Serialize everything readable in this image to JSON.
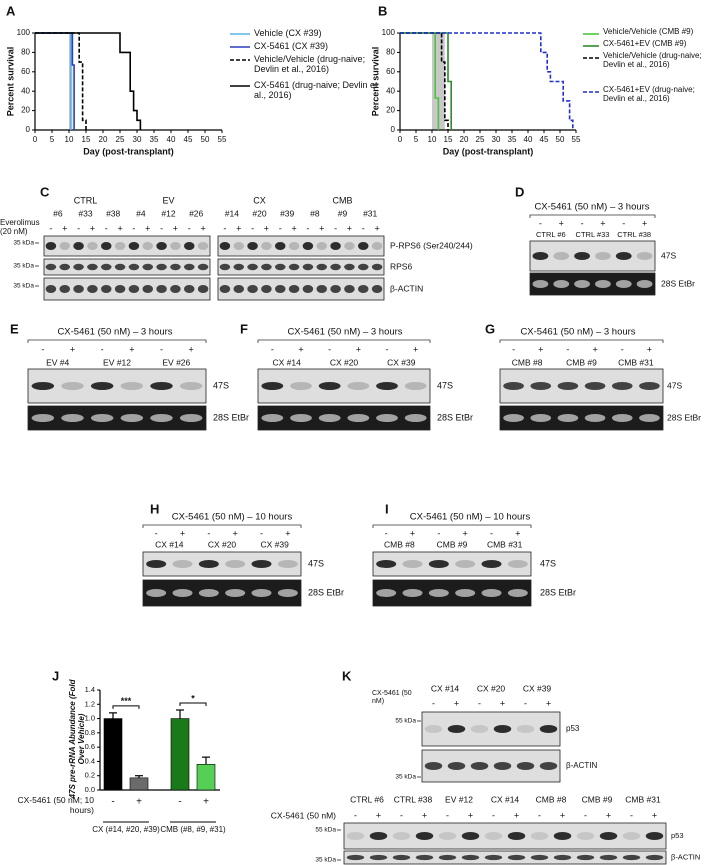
{
  "chart_data": [
    {
      "type": "line",
      "panel": "A",
      "ylabel": "Percent survival",
      "xlabel": "Day (post-transplant)",
      "xlim": [
        0,
        55
      ],
      "xticks": [
        0,
        5,
        10,
        15,
        20,
        25,
        30,
        35,
        40,
        45,
        50,
        55
      ],
      "ylim": [
        0,
        100
      ],
      "yticks": [
        0,
        20,
        40,
        60,
        80,
        100
      ],
      "shade": [
        10,
        11
      ],
      "series": [
        {
          "name": "Vehicle (CX #39)",
          "color": "#5bb4e5",
          "dash": false,
          "x": [
            0,
            10.5,
            10.5
          ],
          "values": [
            100,
            100,
            0
          ]
        },
        {
          "name": "CX-5461 (CX #39)",
          "color": "#2a3fbf",
          "dash": false,
          "x": [
            0,
            11,
            11,
            11.5,
            11.5
          ],
          "values": [
            100,
            100,
            67,
            67,
            0
          ]
        },
        {
          "name": "Vehicle/Vehicle (drug-naive; Devlin et al., 2016)",
          "color": "#000000",
          "dash": true,
          "x": [
            0,
            13,
            13,
            14,
            14,
            15,
            15
          ],
          "values": [
            100,
            100,
            70,
            70,
            10,
            10,
            0
          ]
        },
        {
          "name": "CX-5461 (drug-naive; Devlin et al., 2016)",
          "color": "#000000",
          "dash": false,
          "x": [
            0,
            25,
            25,
            28,
            28,
            29,
            29,
            30,
            30,
            31,
            31
          ],
          "values": [
            100,
            100,
            80,
            80,
            40,
            40,
            20,
            20,
            10,
            10,
            0
          ]
        }
      ]
    },
    {
      "type": "line",
      "panel": "B",
      "ylabel": "Percent survival",
      "xlabel": "Day (post-transplant)",
      "xlim": [
        0,
        55
      ],
      "xticks": [
        0,
        5,
        10,
        15,
        20,
        25,
        30,
        35,
        40,
        45,
        50,
        55
      ],
      "ylim": [
        0,
        100
      ],
      "yticks": [
        0,
        20,
        40,
        60,
        80,
        100
      ],
      "shade": [
        10,
        14
      ],
      "series": [
        {
          "name": "Vehicle/Vehicle (CMB #9)",
          "color": "#4cc43c",
          "dash": false,
          "x": [
            0,
            11,
            11,
            12,
            12
          ],
          "values": [
            100,
            100,
            33,
            33,
            0
          ]
        },
        {
          "name": "CX-5461+EV (CMB #9)",
          "color": "#2e8b2e",
          "dash": false,
          "x": [
            0,
            15,
            15,
            16,
            16
          ],
          "values": [
            100,
            100,
            50,
            50,
            0
          ]
        },
        {
          "name": "Vehicle/Vehicle (drug-naive; Devlin et al., 2016)",
          "color": "#000000",
          "dash": true,
          "x": [
            0,
            13,
            13,
            14,
            14,
            15,
            15
          ],
          "values": [
            100,
            100,
            70,
            70,
            10,
            10,
            0
          ]
        },
        {
          "name": "CX-5461+EV (drug-naive; Devlin et al., 2016)",
          "color": "#1f2fd0",
          "dash": true,
          "x": [
            0,
            44,
            44,
            46,
            46,
            47,
            47,
            51,
            51,
            53,
            53,
            54,
            54
          ],
          "values": [
            100,
            100,
            80,
            80,
            60,
            60,
            50,
            50,
            30,
            30,
            10,
            10,
            0
          ]
        }
      ]
    },
    {
      "type": "bar",
      "panel": "J",
      "ylabel": "47S pre-rRNA Abundance (Fold Over Vehicle)",
      "categories": [
        "-",
        "+",
        "-",
        "+"
      ],
      "values": [
        1.0,
        0.17,
        1.0,
        0.36
      ],
      "errors": [
        0.08,
        0.03,
        0.12,
        0.1
      ],
      "colors": [
        "#000000",
        "#6b6b6b",
        "#1a7a1a",
        "#55d055"
      ],
      "ylim": [
        0,
        1.4
      ],
      "yticks": [
        {
          "value": 0,
          "label": "0.0"
        },
        {
          "value": 0.2,
          "label": "0.2"
        },
        {
          "value": 0.4,
          "label": "0.4"
        },
        {
          "value": 0.6,
          "label": "0.6"
        },
        {
          "value": 0.8,
          "label": "0.8"
        },
        {
          "value": 1.0,
          "label": "1.0"
        },
        {
          "value": 1.2,
          "label": "1.2"
        },
        {
          "value": 1.4,
          "label": "1.4"
        }
      ],
      "significance": [
        "***",
        "*"
      ],
      "treatment_label": "CX-5461 (50 nM; 10 hours)",
      "group_labels": [
        "CX (#14, #20, #39)",
        "CMB (#8, #9, #31)"
      ]
    }
  ],
  "blots": [
    {
      "panel": "C",
      "treatment": "Everolimus (20 nM)",
      "groups": [
        "CTRL",
        "EV",
        "CX",
        "CMB"
      ],
      "signs": [
        "-",
        "+"
      ],
      "samples": [
        "#6",
        "#33",
        "#38",
        "#4",
        "#12",
        "#26",
        "#14",
        "#20",
        "#39",
        "#8",
        "#9",
        "#31"
      ],
      "rows": [
        "P-RPS6 (Ser240/244)",
        "RPS6",
        "β-ACTIN"
      ],
      "markers": [
        "35 kDa"
      ]
    },
    {
      "panel": "D",
      "title": "CX-5461 (50 nM) – 3 hours",
      "signs": [
        "-",
        "+"
      ],
      "samples": [
        "CTRL #6",
        "CTRL #33",
        "CTRL #38"
      ],
      "rows": [
        "47S",
        "28S EtBr"
      ]
    },
    {
      "panel": "E",
      "title": "CX-5461 (50 nM) – 3 hours",
      "signs": [
        "-",
        "+"
      ],
      "samples": [
        "EV #4",
        "EV #12",
        "EV #26"
      ],
      "rows": [
        "47S",
        "28S EtBr"
      ]
    },
    {
      "panel": "F",
      "title": "CX-5461 (50 nM) – 3 hours",
      "signs": [
        "-",
        "+"
      ],
      "samples": [
        "CX #14",
        "CX #20",
        "CX #39"
      ],
      "rows": [
        "47S",
        "28S EtBr"
      ]
    },
    {
      "panel": "G",
      "title": "CX-5461 (50 nM) – 3 hours",
      "signs": [
        "-",
        "+"
      ],
      "samples": [
        "CMB #8",
        "CMB #9",
        "CMB #31"
      ],
      "rows": [
        "47S",
        "28S EtBr"
      ]
    },
    {
      "panel": "H",
      "title": "CX-5461 (50 nM) – 10 hours",
      "signs": [
        "-",
        "+"
      ],
      "samples": [
        "CX #14",
        "CX #20",
        "CX #39"
      ],
      "rows": [
        "47S",
        "28S EtBr"
      ]
    },
    {
      "panel": "I",
      "title": "CX-5461 (50 nM) – 10 hours",
      "signs": [
        "-",
        "+"
      ],
      "samples": [
        "CMB #8",
        "CMB #9",
        "CMB #31"
      ],
      "rows": [
        "47S",
        "28S EtBr"
      ]
    },
    {
      "panel": "K",
      "treatment": "CX-5461 (50 nM)",
      "signs": [
        "-",
        "+"
      ],
      "samples": [
        "CX #14",
        "CX #20",
        "CX #39"
      ],
      "rows": [
        "p53",
        "β-ACTIN"
      ],
      "markers": [
        "55 kDa",
        "35 kDa"
      ]
    },
    {
      "treatment": "CX-5461 (50 nM)",
      "signs": [
        "-",
        "+"
      ],
      "samples": [
        "CTRL #6",
        "CTRL #38",
        "EV #12",
        "CX #14",
        "CMB #8",
        "CMB #9",
        "CMB #31"
      ],
      "rows": [
        "p53",
        "β-ACTIN"
      ],
      "markers": [
        "55 kDa",
        "35 kDa"
      ]
    }
  ]
}
